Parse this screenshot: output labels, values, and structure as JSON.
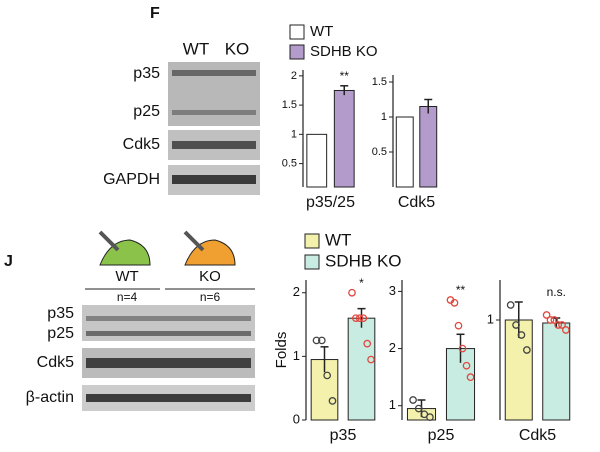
{
  "panels": {
    "F": {
      "label": "F",
      "lanes": [
        "WT",
        "KO"
      ],
      "bands": [
        "p35",
        "p25",
        "Cdk5",
        "GAPDH"
      ],
      "legend": [
        {
          "name": "WT",
          "color": "#ffffff"
        },
        {
          "name": "SDHB KO",
          "color": "#b39bcb"
        }
      ]
    },
    "J": {
      "label": "J",
      "groups": [
        {
          "name": "WT",
          "n": "n=4"
        },
        {
          "name": "KO",
          "n": "n=6"
        }
      ],
      "bands": [
        "p35",
        "p25",
        "Cdk5",
        "β-actin"
      ],
      "legend": [
        {
          "name": "WT",
          "color": "#f4f1ac"
        },
        {
          "name": "SDHB KO",
          "color": "#c9ece2"
        }
      ]
    }
  },
  "chart_data": [
    {
      "type": "bar",
      "panel": "F",
      "xlabel": "p35/25",
      "values": [
        1.0,
        1.75
      ],
      "errors": [
        0,
        0.08
      ],
      "annotation": "**",
      "ylim": [
        0.1,
        2.1
      ],
      "yticks": [
        0.5,
        1.0,
        1.5,
        2.0
      ]
    },
    {
      "type": "bar",
      "panel": "F",
      "xlabel": "Cdk5",
      "values": [
        1.0,
        1.15
      ],
      "errors": [
        0,
        0.1
      ],
      "ylim": [
        0,
        1.6
      ],
      "yticks": [
        0.5,
        1.0,
        1.5
      ]
    },
    {
      "type": "bar",
      "panel": "J",
      "ylabel": "Folds",
      "xlabel": "p35",
      "values": [
        0.95,
        1.6
      ],
      "errors": [
        0.2,
        0.15
      ],
      "annotation": "*",
      "points": [
        [
          1.25,
          1.25,
          0.7,
          0.3
        ],
        [
          2.0,
          1.6,
          1.6,
          1.6,
          1.2,
          0.95
        ]
      ],
      "ylim": [
        0,
        2.2
      ],
      "yticks": [
        0,
        1,
        2
      ]
    },
    {
      "type": "bar",
      "panel": "J",
      "xlabel": "p25",
      "values": [
        0.95,
        2.0
      ],
      "errors": [
        0.15,
        0.25
      ],
      "annotation": "**",
      "points": [
        [
          1.1,
          0.95,
          0.85,
          0.8
        ],
        [
          2.85,
          2.8,
          2.4,
          2.0,
          1.7,
          1.5
        ]
      ],
      "ylim": [
        0.75,
        3.2
      ],
      "yticks": [
        1,
        2,
        3
      ]
    },
    {
      "type": "bar",
      "panel": "J",
      "xlabel": "Cdk5",
      "values": [
        1.0,
        0.97
      ],
      "errors": [
        0.18,
        0.05
      ],
      "annotation": "n.s.",
      "points": [
        [
          1.15,
          0.95,
          0.85,
          0.7
        ],
        [
          1.05,
          1.0,
          1.0,
          0.95,
          0.95,
          0.9
        ]
      ],
      "ylim": [
        0,
        1.4
      ],
      "yticks": [
        1
      ]
    }
  ]
}
